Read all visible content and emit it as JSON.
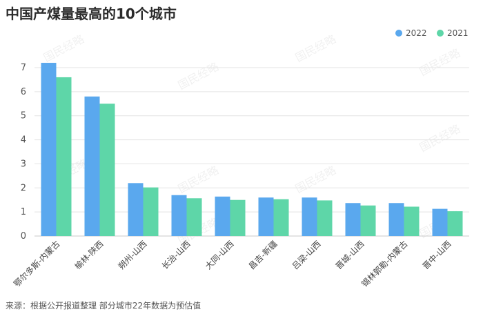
{
  "title": "中国产煤量最高的10个城市",
  "source": "来源：根据公开报道整理 部分城市22年数据为预估值",
  "watermark": "国民经略",
  "colors": {
    "series_2022": "#5aa8ee",
    "series_2021": "#5ed6a8",
    "grid": "#e3e3e3",
    "axis": "#c8c8c8"
  },
  "chart_data": {
    "type": "bar",
    "title": "中国产煤量最高的10个城市",
    "xlabel": "",
    "ylabel": "",
    "ylim": [
      0,
      7
    ],
    "yticks": [
      0,
      1,
      2,
      3,
      4,
      5,
      6,
      7
    ],
    "grid": true,
    "legend_position": "top-right",
    "categories": [
      "鄂尔多斯-内蒙古",
      "榆林-陕西",
      "朔州-山西",
      "长治-山西",
      "大同-山西",
      "昌吉-新疆",
      "吕梁-山西",
      "晋城-山西",
      "锡林郭勒-内蒙古",
      "晋中-山西"
    ],
    "series": [
      {
        "name": "2022",
        "values": [
          7.2,
          5.8,
          2.2,
          1.7,
          1.64,
          1.6,
          1.6,
          1.37,
          1.37,
          1.13
        ]
      },
      {
        "name": "2021",
        "values": [
          6.6,
          5.5,
          2.02,
          1.57,
          1.5,
          1.53,
          1.48,
          1.27,
          1.22,
          1.03
        ]
      }
    ]
  }
}
